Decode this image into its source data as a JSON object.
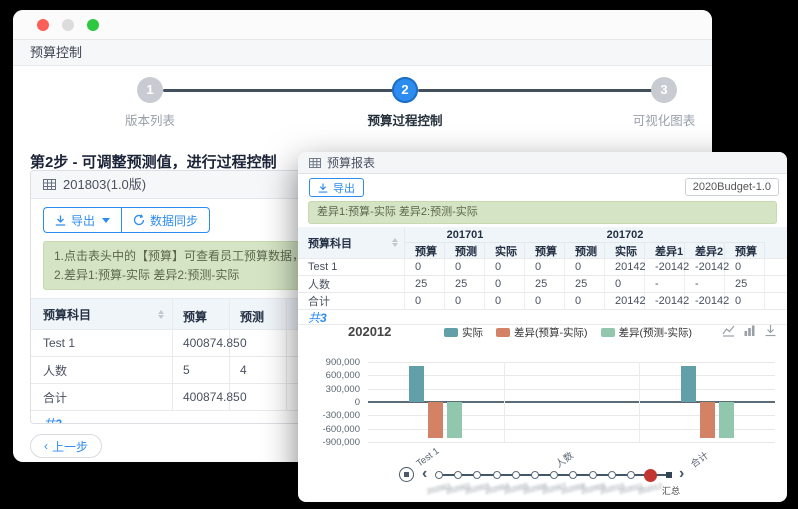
{
  "back_window": {
    "titlebar": {
      "buttons": [
        "close",
        "minimize",
        "maximize"
      ]
    },
    "page_title": "预算控制",
    "steps": [
      {
        "num": "1",
        "label": "版本列表",
        "state": "inactive"
      },
      {
        "num": "2",
        "label": "预算过程控制",
        "state": "active"
      },
      {
        "num": "3",
        "label": "可视化图表",
        "state": "inactive"
      }
    ],
    "step_heading": "第2步 - 可调整预测值，进行过程控制",
    "panel": {
      "title": "201803(1.0版)",
      "toolbar": {
        "export_label": "导出",
        "sync_label": "数据同步"
      },
      "alert_lines": [
        "1.点击表头中的【预算】可查看员工预算数据，点击【实际】可查看员工实际",
        "2.差异1:预算-实际 差异2:预测-实际"
      ],
      "table": {
        "subject_header": "预算科目",
        "columns": [
          "预算",
          "预测"
        ],
        "rows": [
          {
            "subject": "Test 1",
            "values": [
              "400874.85",
              "0"
            ]
          },
          {
            "subject": "人数",
            "values": [
              "5",
              "4"
            ]
          },
          {
            "subject": "合计",
            "values": [
              "400874.85",
              "0"
            ]
          }
        ],
        "total_prefix": "共",
        "total_count": "3"
      }
    },
    "prev_button": "上一步"
  },
  "front_window": {
    "header_title": "预算报表",
    "toolbar": {
      "export_label": "导出",
      "version_select": "2020Budget-1.0"
    },
    "alert": "差异1:预算-实际 差异2:预测-实际",
    "table": {
      "subject_header": "预算科目",
      "groups": [
        {
          "label": "201701",
          "span": 3
        },
        {
          "label": "201702",
          "span": 5
        },
        {
          "label": "",
          "span": 1
        }
      ],
      "columns": [
        "预算",
        "预测",
        "实际",
        "预算",
        "预测",
        "实际",
        "差异1",
        "差异2",
        "预算"
      ],
      "rows": [
        {
          "subject": "Test 1",
          "values": [
            "0",
            "0",
            "0",
            "0",
            "0",
            "20142",
            "-20142",
            "-20142",
            "0"
          ]
        },
        {
          "subject": "人数",
          "values": [
            "25",
            "25",
            "0",
            "25",
            "25",
            "0",
            "-",
            "-",
            "25"
          ]
        },
        {
          "subject": "合计",
          "values": [
            "0",
            "0",
            "0",
            "0",
            "0",
            "20142",
            "-20142",
            "-20142",
            "0"
          ]
        }
      ],
      "total_prefix": "共",
      "total_count": "3"
    },
    "timeline": {
      "points": [
        "202001",
        "202002",
        "202003",
        "202004",
        "202005",
        "202006",
        "202007",
        "202008",
        "202009",
        "202010",
        "202011",
        "202012"
      ],
      "current": "202012",
      "end_label": "汇总",
      "labels_blurred": true
    }
  },
  "chart_data": {
    "type": "bar",
    "title": "202012",
    "categories": [
      "Test 1",
      "人数",
      "合计"
    ],
    "series": [
      {
        "name": "实际",
        "color": "#61a0a8",
        "values": [
          800000,
          0,
          800000
        ]
      },
      {
        "name": "差异(预算-实际)",
        "color": "#d48265",
        "values": [
          -810000,
          0,
          -810000
        ]
      },
      {
        "name": "差异(预测-实际)",
        "color": "#91c7ae",
        "values": [
          -800000,
          0,
          -800000
        ]
      }
    ],
    "ylim": [
      -900000,
      900000
    ],
    "ytick_step": 300000,
    "grid": true,
    "legend_position": "top-center"
  },
  "colors": {
    "primary_blue": "#2d8cf0",
    "series_actual": "#61a0a8",
    "series_diff_budget": "#d48265",
    "series_diff_forecast": "#91c7ae",
    "timeline_current": "#c23531"
  }
}
